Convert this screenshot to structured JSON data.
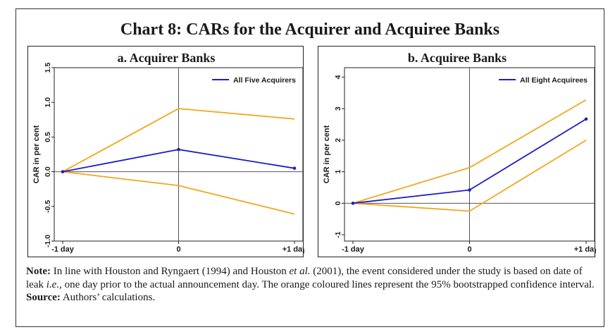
{
  "figure": {
    "title": "Chart 8: CARs for the Acquirer and Acquiree Banks"
  },
  "notes": {
    "note_label": "Note:",
    "note_part1": "In line with Houston and Ryngaert (1994) and Houston ",
    "note_etal": "et al.",
    "note_part2": " (2001), the event considered under the study is based on date of leak ",
    "note_ie": "i.e.,",
    "note_part3": " one day prior to the actual announcement day. The orange coloured lines represent the 95% bootstrapped confidence interval.",
    "source_label": "Source:",
    "source_text": "Authors’ calculations."
  },
  "colors": {
    "estimate": "#1c1cc8",
    "confidence": "#f0a81e",
    "axis": "#222222",
    "refline": "#555555"
  },
  "chart_data": [
    {
      "type": "line",
      "title": "a. Acquirer Banks",
      "xlabel": "",
      "ylabel": "CAR in per cent",
      "categories": [
        "-1 day",
        "0",
        "+1 day"
      ],
      "yticks": [
        "-1.0",
        "-0.5",
        "0.0",
        "0.5",
        "1.0",
        "1.5"
      ],
      "ylim": [
        -1.0,
        1.5
      ],
      "legend_position": "top-right",
      "series": [
        {
          "name": "All Five Acquirers",
          "role": "estimate",
          "values": [
            0.0,
            0.32,
            0.05
          ]
        },
        {
          "role": "upper",
          "values": [
            0.0,
            0.91,
            0.76
          ]
        },
        {
          "role": "lower",
          "values": [
            0.0,
            -0.2,
            -0.61
          ]
        }
      ]
    },
    {
      "type": "line",
      "title": "b. Acquiree Banks",
      "xlabel": "",
      "ylabel": "CAR in per cent",
      "categories": [
        "-1 day",
        "0",
        "+1 day"
      ],
      "yticks": [
        "-1",
        "0",
        "1",
        "2",
        "3",
        "4"
      ],
      "ylim": [
        -1.2,
        4.3
      ],
      "legend_position": "top-right",
      "series": [
        {
          "name": "All Eight Acquirees",
          "role": "estimate",
          "values": [
            0.0,
            0.42,
            2.67
          ]
        },
        {
          "role": "upper",
          "values": [
            0.0,
            1.13,
            3.28
          ]
        },
        {
          "role": "lower",
          "values": [
            0.0,
            -0.25,
            2.0
          ]
        }
      ]
    }
  ]
}
